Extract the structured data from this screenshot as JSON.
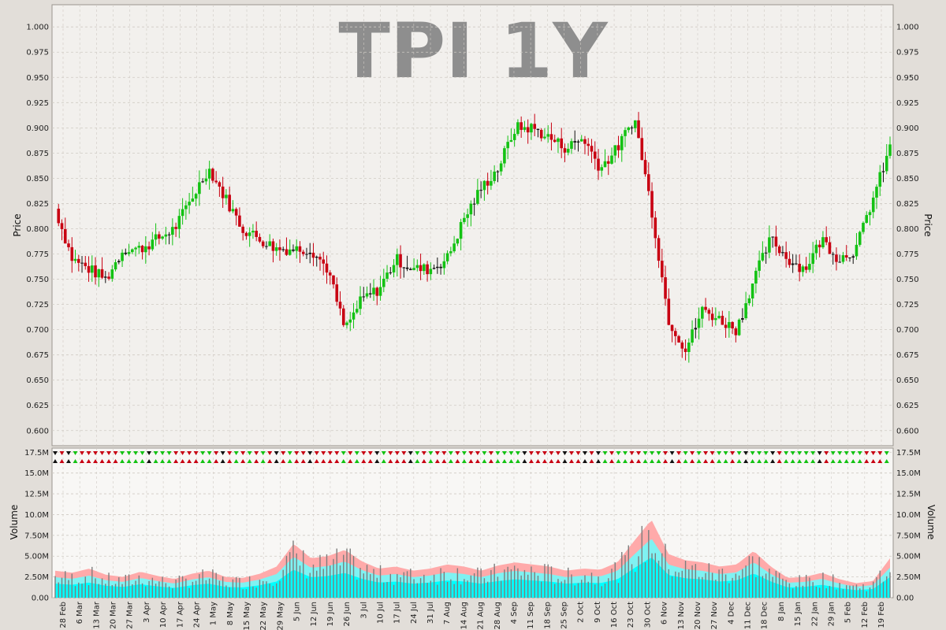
{
  "chart_data": [
    {
      "type": "candlestick",
      "title": "TPI 1Y",
      "ylabel": "Price",
      "ylim": [
        0.585,
        1.022
      ],
      "y_ticks": [
        "0.600",
        "0.625",
        "0.650",
        "0.675",
        "0.700",
        "0.725",
        "0.750",
        "0.775",
        "0.800",
        "0.825",
        "0.850",
        "0.875",
        "0.900",
        "0.925",
        "0.950",
        "0.975",
        "1.000"
      ],
      "x_tick_labels": [
        "28 Feb",
        "6 Mar",
        "13 Mar",
        "20 Mar",
        "27 Mar",
        "3 Apr",
        "10 Apr",
        "17 Apr",
        "24 Apr",
        "1 May",
        "8 May",
        "15 May",
        "22 May",
        "29 May",
        "5 Jun",
        "12 Jun",
        "19 Jun",
        "26 Jun",
        "3 Jul",
        "10 Jul",
        "17 Jul",
        "24 Jul",
        "31 Jul",
        "7 Aug",
        "14 Aug",
        "21 Aug",
        "28 Aug",
        "4 Sep",
        "11 Sep",
        "18 Sep",
        "25 Sep",
        "2 Oct",
        "9 Oct",
        "16 Oct",
        "23 Oct",
        "30 Oct",
        "6 Nov",
        "13 Nov",
        "20 Nov",
        "27 Nov",
        "4 Dec",
        "11 Dec",
        "18 Dec",
        "8 Jan",
        "15 Jan",
        "22 Jan",
        "29 Jan",
        "5 Feb",
        "12 Feb",
        "19 Feb"
      ],
      "weekly_close": [
        0.82,
        0.77,
        0.76,
        0.75,
        0.78,
        0.78,
        0.79,
        0.8,
        0.83,
        0.86,
        0.83,
        0.8,
        0.79,
        0.78,
        0.78,
        0.78,
        0.76,
        0.7,
        0.73,
        0.74,
        0.77,
        0.76,
        0.76,
        0.77,
        0.81,
        0.84,
        0.86,
        0.9,
        0.9,
        0.89,
        0.88,
        0.89,
        0.86,
        0.88,
        0.91,
        0.82,
        0.71,
        0.68,
        0.72,
        0.71,
        0.7,
        0.75,
        0.79,
        0.77,
        0.76,
        0.79,
        0.77,
        0.78,
        0.83,
        0.88
      ],
      "grid": true
    },
    {
      "type": "bar",
      "ylabel": "Volume",
      "ylim": [
        0,
        18000000
      ],
      "y_ticks": [
        "0.00",
        "2.50M",
        "5.00M",
        "7.50M",
        "10.0M",
        "12.5M",
        "15.0M",
        "17.5M"
      ],
      "weekly_volume_m": [
        2.6,
        2.4,
        2.8,
        2.2,
        2.0,
        2.5,
        2.1,
        1.8,
        2.3,
        2.6,
        2.0,
        1.9,
        2.3,
        3.0,
        5.2,
        3.8,
        4.0,
        4.6,
        3.5,
        2.8,
        3.0,
        2.6,
        2.8,
        3.2,
        3.0,
        2.6,
        3.1,
        3.4,
        3.2,
        3.0,
        2.6,
        2.8,
        2.7,
        3.4,
        5.5,
        7.5,
        4.2,
        3.6,
        3.4,
        3.0,
        3.2,
        4.5,
        3.0,
        1.9,
        2.0,
        2.4,
        1.8,
        1.4,
        1.6,
        3.8
      ],
      "grid": true
    }
  ],
  "colors": {
    "up": "#13c213",
    "down": "#c80012",
    "flat": "#111111",
    "band_outer": "#ffaaaa",
    "band_mid": "#7ff2f2",
    "band_inner": "#00ffff",
    "volume_bar": "#7d7d7d",
    "panel_bg": "#f2f0ed",
    "page_bg": "#e2ded9",
    "grid": "#cfcac4"
  }
}
